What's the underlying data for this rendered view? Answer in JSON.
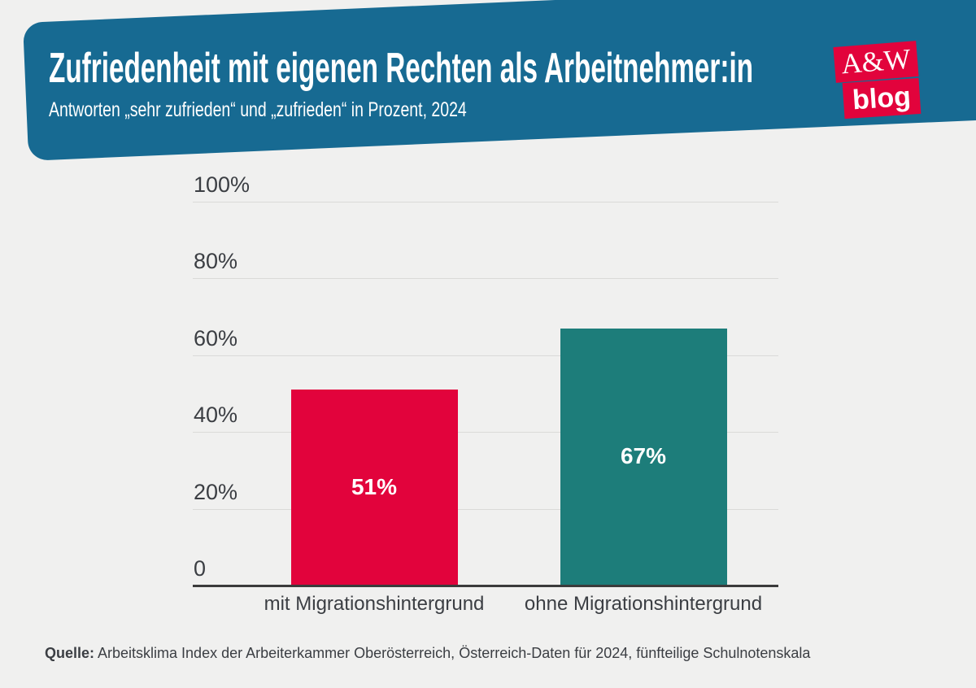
{
  "page": {
    "background": "#f0f0ef"
  },
  "header": {
    "background": "#176a92",
    "text_color": "#ffffff",
    "title": "Zufriedenheit mit eigenen Rechten als Arbeitnehmer:in",
    "subtitle": "Antworten „sehr zufrieden“ und „zufrieden“ in Prozent, 2024"
  },
  "logo": {
    "background": "#e2033c",
    "text_color": "#ffffff",
    "line1": "A&W",
    "line2": "blog"
  },
  "chart_data": {
    "type": "bar",
    "title": "Zufriedenheit mit eigenen Rechten als Arbeitnehmer:in",
    "subtitle": "Antworten „sehr zufrieden“ und „zufrieden“ in Prozent, 2024",
    "categories": [
      "mit Migrationshintergrund",
      "ohne Migrationshintergrund"
    ],
    "values": [
      51,
      67
    ],
    "value_labels": [
      "51%",
      "67%"
    ],
    "bar_colors": [
      "#e2033c",
      "#1d7d7a"
    ],
    "xlabel": "",
    "ylabel": "",
    "ylim": [
      0,
      100
    ],
    "grid": true,
    "legend": false,
    "yticks": [
      {
        "label": "100%",
        "value": 100
      },
      {
        "label": "80%",
        "value": 80
      },
      {
        "label": "60%",
        "value": 60
      },
      {
        "label": "40%",
        "value": 40
      },
      {
        "label": "20%",
        "value": 20
      },
      {
        "label": "0",
        "value": 0
      }
    ],
    "gridline_color": "#dadad8",
    "axis_color": "#3b3b3b",
    "label_color": "#3b3e43"
  },
  "source": {
    "label": "Quelle:",
    "text": " Arbeitsklima Index der Arbeiterkammer Oberösterreich, Österreich-Daten für 2024, fünfteilige Schulnotenskala"
  }
}
